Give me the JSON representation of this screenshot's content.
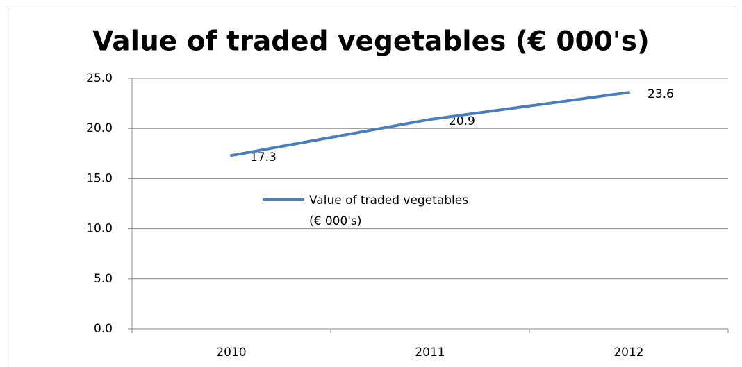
{
  "chart_data": {
    "type": "line",
    "title": "Value of traded vegetables (€ 000's)",
    "categories": [
      "2010",
      "2011",
      "2012"
    ],
    "series": [
      {
        "name": "Value of traded vegetables (€ 000's)",
        "color": "#4a7ebb",
        "values": [
          17.3,
          20.9,
          23.6
        ]
      }
    ],
    "ylim": [
      0,
      25
    ],
    "yticks": [
      {
        "value": 0,
        "label": "0.0"
      },
      {
        "value": 5,
        "label": "5.0"
      },
      {
        "value": 10,
        "label": "10.0"
      },
      {
        "value": 15,
        "label": "15.0"
      },
      {
        "value": 20,
        "label": "20.0"
      },
      {
        "value": 25,
        "label": "25.0"
      }
    ],
    "grid": true,
    "legend": "center"
  }
}
